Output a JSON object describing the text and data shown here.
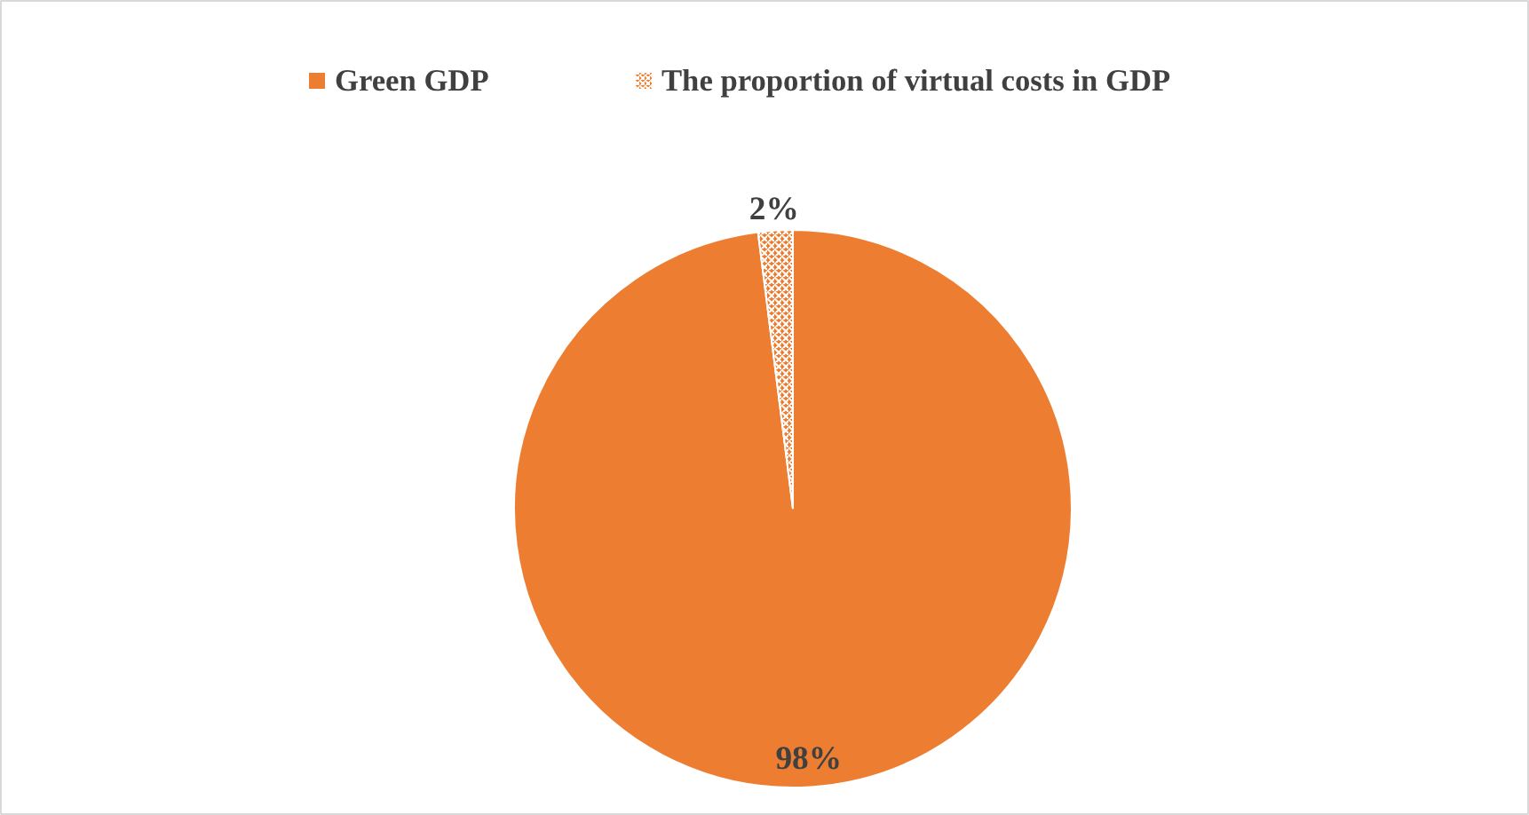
{
  "chart_data": {
    "type": "pie",
    "categories": [
      "Green GDP",
      "The proportion of virtual costs in GDP"
    ],
    "values": [
      98,
      2
    ],
    "colors": [
      "#ed7d31",
      "#ed7d31"
    ],
    "value_labels": [
      "98%",
      "2%"
    ],
    "legend": "top"
  }
}
